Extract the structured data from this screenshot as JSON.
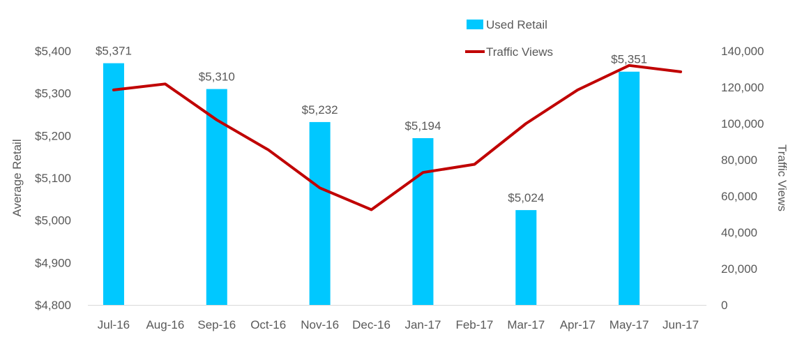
{
  "chart_data": {
    "type": "bar",
    "categories": [
      "Jul-16",
      "Aug-16",
      "Sep-16",
      "Oct-16",
      "Nov-16",
      "Dec-16",
      "Jan-17",
      "Feb-17",
      "Mar-17",
      "Apr-17",
      "May-17",
      "Jun-17"
    ],
    "series": [
      {
        "name": "Used Retail",
        "type": "bar",
        "axis": "left",
        "color": "#00C8FF",
        "values": [
          5371,
          null,
          5310,
          null,
          5232,
          null,
          5194,
          null,
          5024,
          null,
          5351,
          null
        ],
        "data_labels": [
          "$5,371",
          "",
          "$5,310",
          "",
          "$5,232",
          "",
          "$5,194",
          "",
          "$5,024",
          "",
          "$5,351",
          ""
        ]
      },
      {
        "name": "Traffic Views",
        "type": "line",
        "axis": "right",
        "color": "#C00000",
        "values": [
          118500,
          121800,
          102000,
          85500,
          64500,
          52500,
          73000,
          77500,
          100000,
          118500,
          132000,
          128500
        ]
      }
    ],
    "title": "",
    "xlabel": "",
    "ylabel": "Average Retail",
    "y2label": "Traffic Views",
    "ylim": [
      4800,
      5400
    ],
    "y2lim": [
      0,
      140000
    ],
    "yticks": [
      "$4,800",
      "$4,900",
      "$5,000",
      "$5,100",
      "$5,200",
      "$5,300",
      "$5,400"
    ],
    "y2ticks": [
      "0",
      "20,000",
      "40,000",
      "60,000",
      "80,000",
      "100,000",
      "120,000",
      "140,000"
    ],
    "grid": false,
    "legend": "top-right"
  }
}
